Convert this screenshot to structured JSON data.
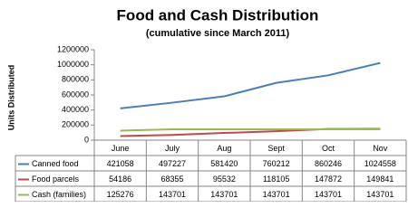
{
  "chart_data": {
    "type": "line",
    "title": "Food and Cash Distribution",
    "subtitle": "(cumulative since March 2011)",
    "y_label": "Units Distributed",
    "categories": [
      "June",
      "July",
      "Aug",
      "Sept",
      "Oct",
      "Nov"
    ],
    "series": [
      {
        "name": "Canned food",
        "color": "#4a7ebb",
        "values": [
          421058,
          497227,
          581420,
          760212,
          860246,
          1024558
        ]
      },
      {
        "name": "Food parcels",
        "color": "#be4b48",
        "values": [
          54186,
          68355,
          95532,
          118105,
          147872,
          149841
        ]
      },
      {
        "name": "Cash (families)",
        "color": "#98b954",
        "values": [
          125276,
          143701,
          143701,
          143701,
          143701,
          143701
        ]
      }
    ],
    "ylim": [
      0,
      1200000
    ],
    "yticks": [
      0,
      200000,
      400000,
      600000,
      800000,
      1000000,
      1200000
    ],
    "grid": false
  }
}
